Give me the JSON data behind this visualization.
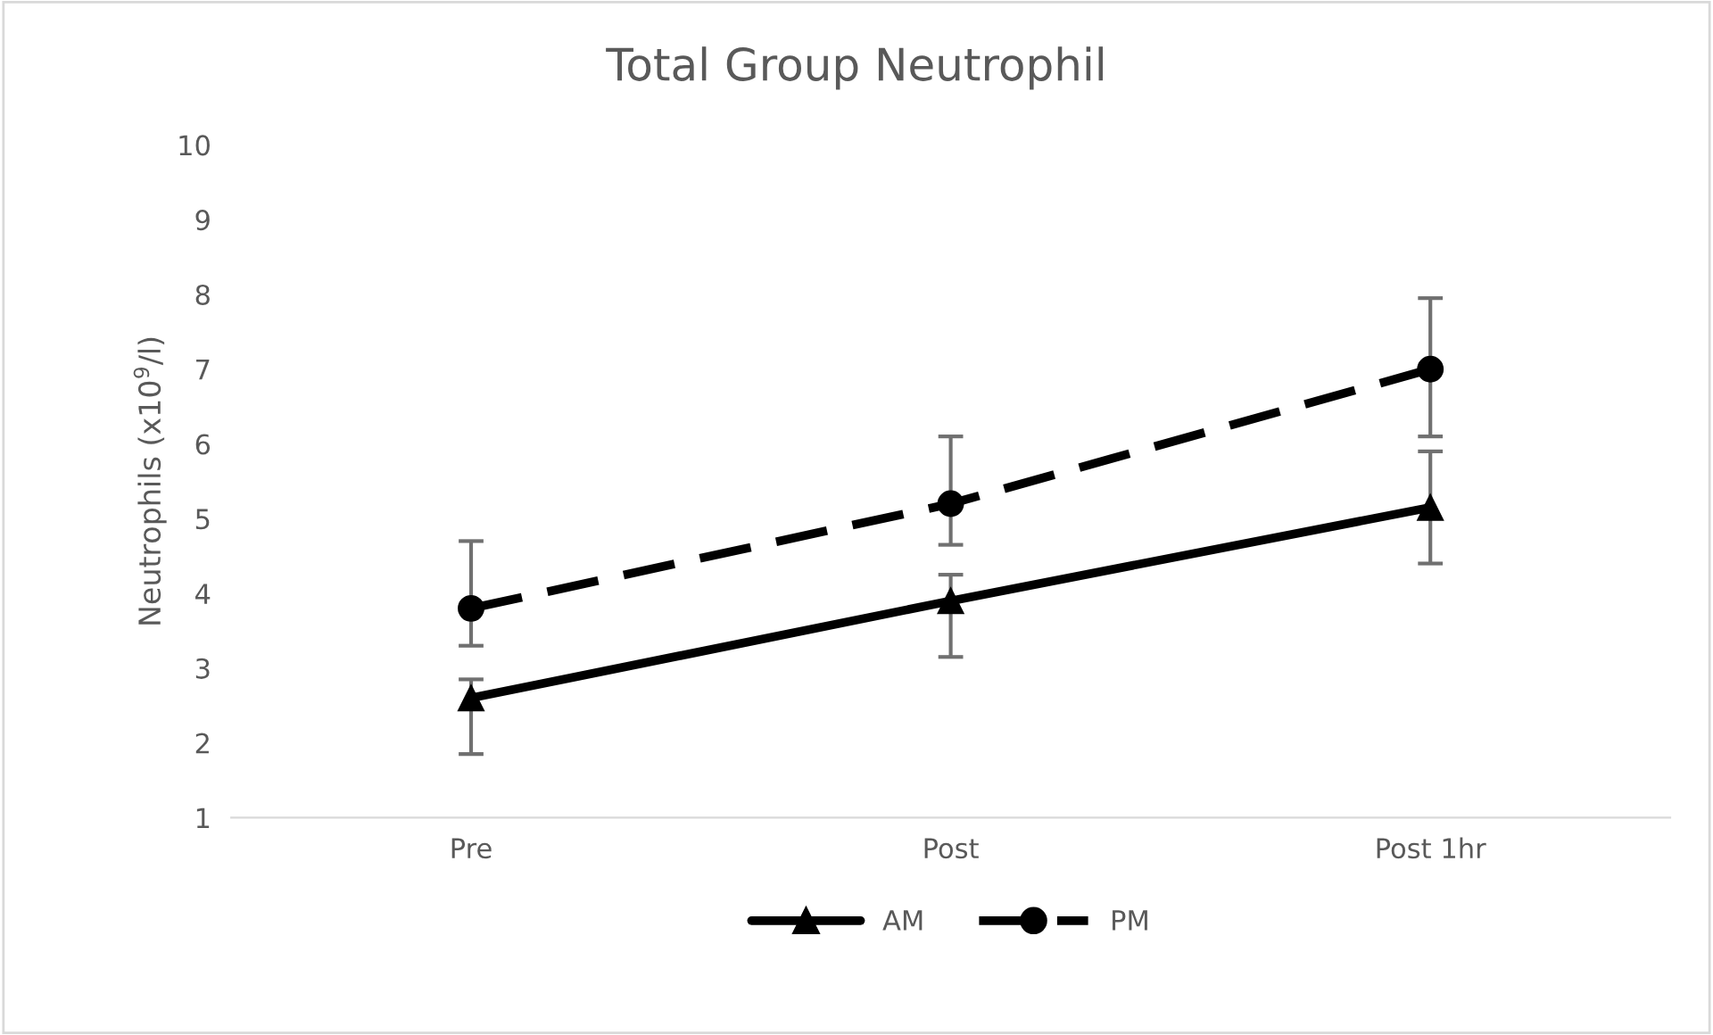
{
  "chart_data": {
    "type": "line",
    "title": "Total Group Neutrophil",
    "ylabel": "Neutrophils (x10$^{9}$/l)",
    "categories": [
      "Pre",
      "Post",
      "Post 1hr"
    ],
    "series": [
      {
        "name": "AM",
        "color": "#000000",
        "marker": "triangle",
        "line_style": "solid",
        "values": [
          2.6,
          3.9,
          5.15
        ],
        "errors": [
          [
            1.85,
            2.85
          ],
          [
            3.15,
            4.25
          ],
          [
            4.4,
            5.9
          ]
        ]
      },
      {
        "name": "PM",
        "color": "#000000",
        "marker": "circle",
        "line_style": "dashed",
        "values": [
          3.8,
          5.2,
          7.0
        ],
        "errors": [
          [
            3.3,
            4.7
          ],
          [
            4.65,
            6.1
          ],
          [
            6.1,
            7.95
          ]
        ]
      }
    ],
    "ylim": [
      1,
      10
    ],
    "yticks": [
      1,
      2,
      3,
      4,
      5,
      6,
      7,
      8,
      9,
      10
    ],
    "grid": false,
    "legend": "bottom"
  }
}
